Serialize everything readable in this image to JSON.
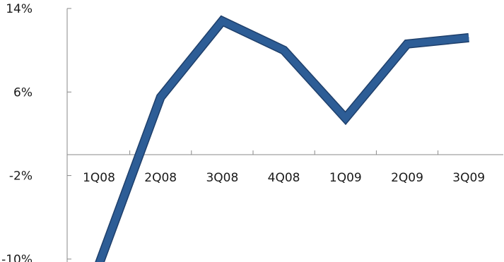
{
  "chart_data": {
    "type": "line",
    "title": "",
    "xlabel": "",
    "ylabel": "",
    "categories": [
      "1Q08",
      "2Q08",
      "3Q08",
      "4Q08",
      "1Q09",
      "2Q09",
      "3Q09"
    ],
    "series": [
      {
        "values": [
          -10.5,
          5.5,
          12.8,
          10.0,
          3.5,
          10.6,
          11.2
        ]
      }
    ],
    "y_ticks": [
      14,
      6,
      -2,
      -10
    ],
    "y_tick_labels": [
      "14%",
      "6%",
      "-2%",
      "-10%"
    ],
    "ylim": [
      -10.5,
      14
    ],
    "grid": false,
    "legend": "none",
    "colors": {
      "line": "#2d5d96",
      "line_edge": "#1e3f6b",
      "axis": "#8a8a8a",
      "text": "#1a1a1a"
    }
  }
}
